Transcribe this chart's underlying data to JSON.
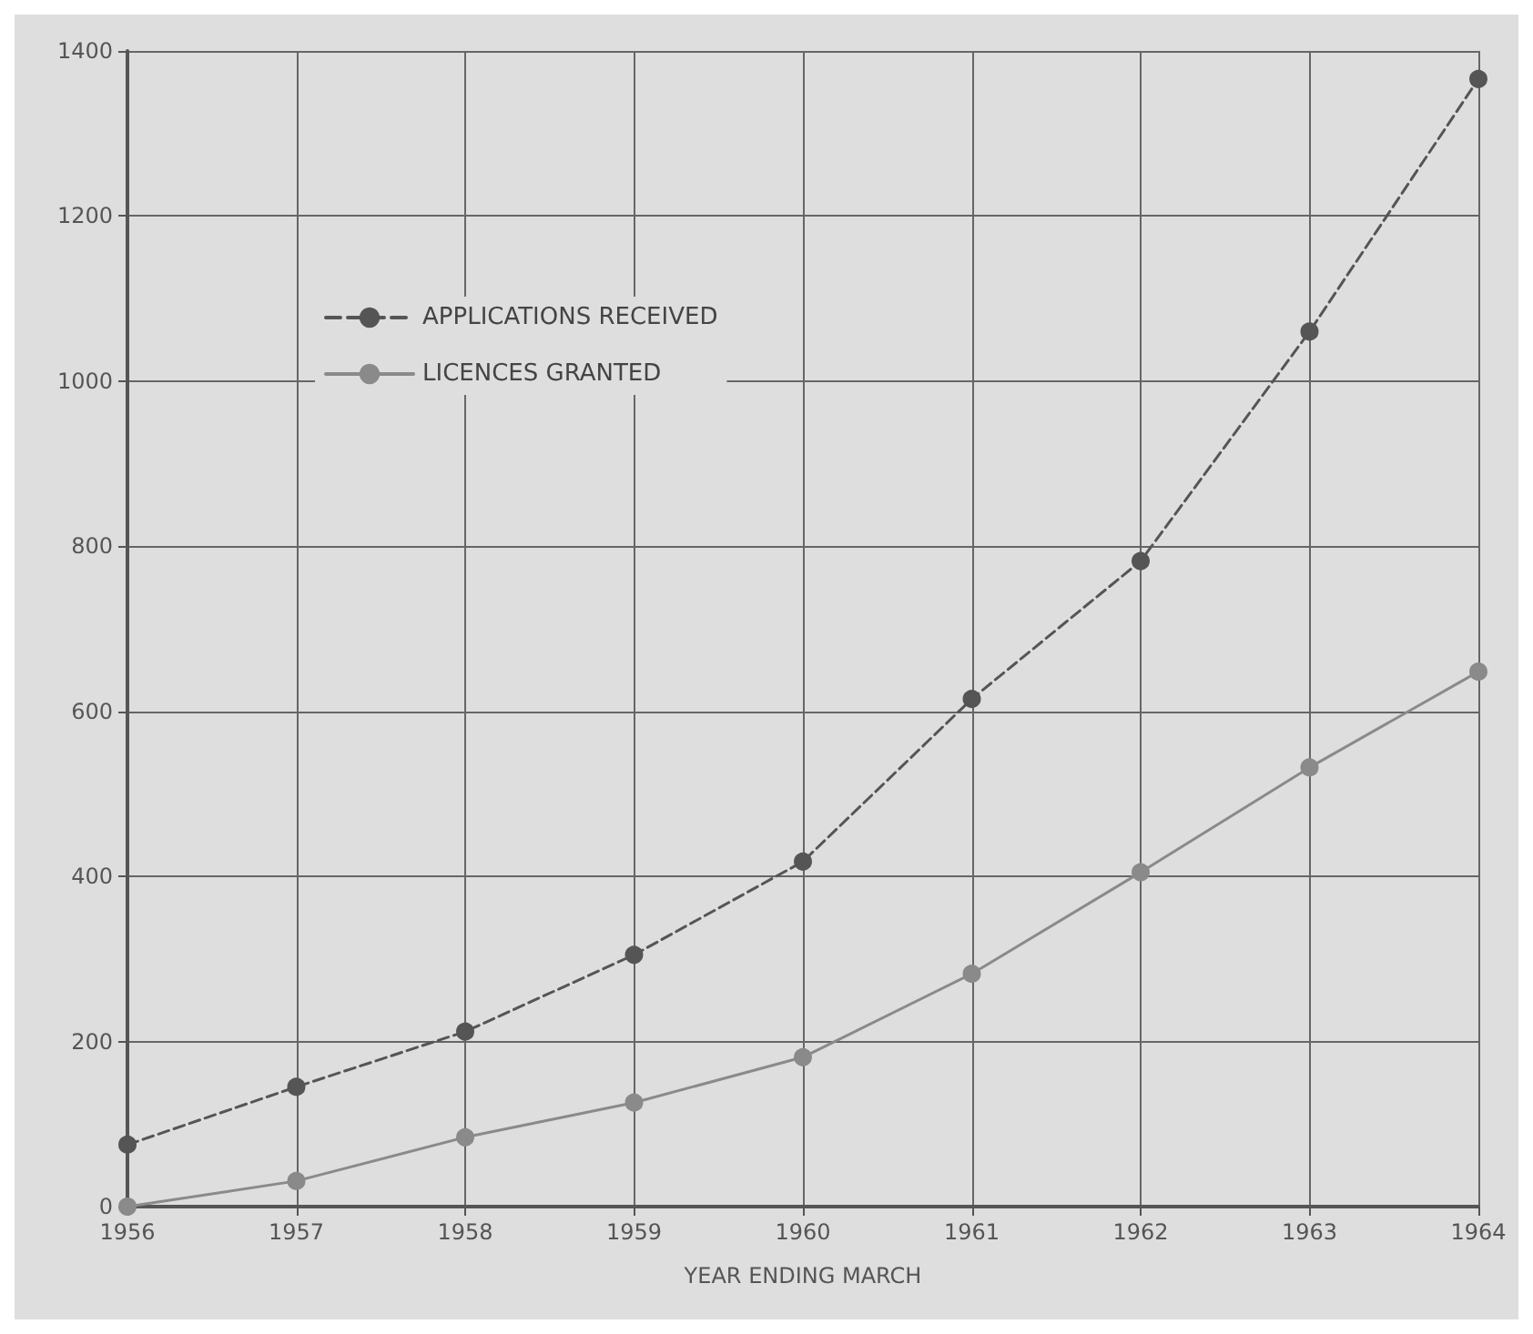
{
  "chart_data": {
    "type": "line",
    "xlabel": "YEAR ENDING MARCH",
    "x": [
      1956,
      1957,
      1958,
      1959,
      1960,
      1961,
      1962,
      1963,
      1964
    ],
    "series": [
      {
        "name": "APPLICATIONS RECEIVED",
        "color": "#555555",
        "line_style": "dashed",
        "values": [
          75,
          145,
          212,
          305,
          418,
          615,
          782,
          1060,
          1366
        ]
      },
      {
        "name": "LICENCES GRANTED",
        "color": "#8a8a8a",
        "line_style": "solid",
        "values": [
          0,
          31,
          84,
          126,
          181,
          282,
          405,
          532,
          648
        ]
      }
    ],
    "xlim": [
      1956,
      1964
    ],
    "xticks": [
      1956,
      1957,
      1958,
      1959,
      1960,
      1961,
      1962,
      1963,
      1964
    ],
    "ylim": [
      0,
      1400
    ],
    "yticks": [
      0,
      200,
      400,
      600,
      800,
      1000,
      1200,
      1400
    ],
    "grid": true,
    "legend": "top left",
    "marker": "circle"
  }
}
